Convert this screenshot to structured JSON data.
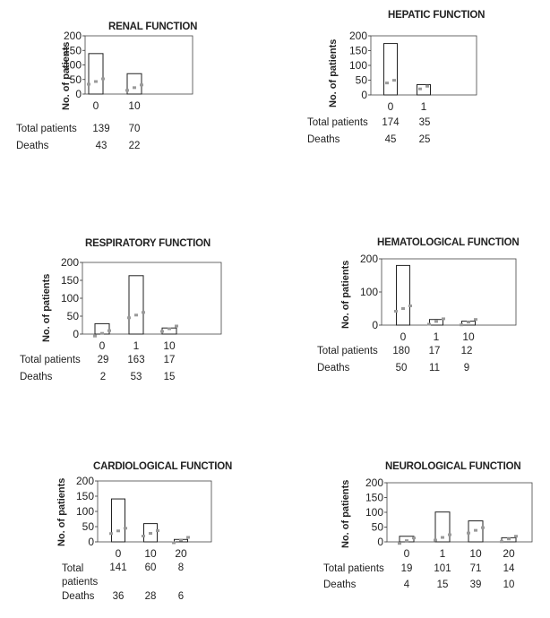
{
  "chart_data": [
    {
      "type": "bar",
      "title": "RENAL FUNCTION",
      "ylabel": "No. of patients",
      "ylim": [
        0,
        200
      ],
      "yticks": [
        "0",
        "50",
        "100",
        "150",
        "200"
      ],
      "categories": [
        "0",
        "10"
      ],
      "rows": [
        {
          "label": "Total patients",
          "values": [
            "139",
            "70"
          ]
        },
        {
          "label": "Deaths",
          "values": [
            "43",
            "22"
          ]
        }
      ]
    },
    {
      "type": "bar",
      "title": "HEPATIC FUNCTION",
      "ylabel": "No. of patients",
      "ylim": [
        0,
        200
      ],
      "yticks": [
        "0",
        "50",
        "100",
        "150",
        "200"
      ],
      "categories": [
        "0",
        "1"
      ],
      "rows": [
        {
          "label": "Total patients",
          "values": [
            "174",
            "35"
          ]
        },
        {
          "label": "Deaths",
          "values": [
            "45",
            "25"
          ]
        }
      ]
    },
    {
      "type": "bar",
      "title": "RESPIRATORY FUNCTION",
      "ylabel": "No. of patients",
      "ylim": [
        0,
        200
      ],
      "yticks": [
        "0",
        "50",
        "100",
        "150",
        "200"
      ],
      "categories": [
        "0",
        "1",
        "10"
      ],
      "rows": [
        {
          "label": "Total patients",
          "values": [
            "29",
            "163",
            "17"
          ]
        },
        {
          "label": "Deaths",
          "values": [
            "2",
            "53",
            "15"
          ]
        }
      ]
    },
    {
      "type": "bar",
      "title": "HEMATOLOGICAL FUNCTION",
      "ylabel": "No. of patients",
      "ylim": [
        0,
        200
      ],
      "yticks": [
        "0",
        "100",
        "200"
      ],
      "categories": [
        "0",
        "1",
        "10"
      ],
      "rows": [
        {
          "label": "Total patients",
          "values": [
            "180",
            "17",
            "12"
          ]
        },
        {
          "label": "Deaths",
          "values": [
            "50",
            "11",
            "9"
          ]
        }
      ]
    },
    {
      "type": "bar",
      "title": "CARDIOLOGICAL FUNCTION",
      "ylabel": "No. of patients",
      "ylim": [
        0,
        200
      ],
      "yticks": [
        "0",
        "50",
        "100",
        "150",
        "200"
      ],
      "categories": [
        "0",
        "10",
        "20"
      ],
      "rows": [
        {
          "label": "Total patients",
          "values": [
            "141",
            "60",
            "8"
          ]
        },
        {
          "label": "Deaths",
          "values": [
            "36",
            "28",
            "6"
          ]
        }
      ]
    },
    {
      "type": "bar",
      "title": "NEUROLOGICAL FUNCTION",
      "ylabel": "No. of patients",
      "ylim": [
        0,
        200
      ],
      "yticks": [
        "0",
        "50",
        "100",
        "150",
        "200"
      ],
      "categories": [
        "0",
        "1",
        "10",
        "20"
      ],
      "rows": [
        {
          "label": "Total patients",
          "values": [
            "19",
            "101",
            "71",
            "14"
          ]
        },
        {
          "label": "Deaths",
          "values": [
            "4",
            "15",
            "39",
            "10"
          ]
        }
      ]
    }
  ],
  "colors": {
    "bar_edge": "#222222",
    "deaths_marker": "#9a9a9a",
    "axis": "#333333"
  }
}
